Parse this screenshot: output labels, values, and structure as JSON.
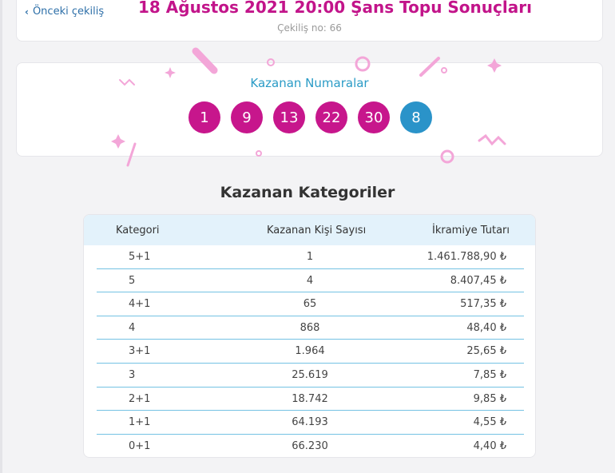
{
  "header": {
    "back_label": "Önceki çekiliş",
    "title": "18 Ağustos 2021 20:00 Şans Topu Sonuçları",
    "draw_no": "Çekiliş no: 66"
  },
  "winning": {
    "title": "Kazanan Numaralar",
    "main_numbers": [
      "1",
      "9",
      "13",
      "22",
      "30"
    ],
    "bonus_number": "8"
  },
  "categories": {
    "title": "Kazanan Kategoriler",
    "columns": [
      "Kategori",
      "Kazanan Kişi Sayısı",
      "İkramiye Tutarı"
    ],
    "rows": [
      {
        "cat": "5+1",
        "count": "1",
        "prize": "1.461.788,90 ₺"
      },
      {
        "cat": "5",
        "count": "4",
        "prize": "8.407,45 ₺"
      },
      {
        "cat": "4+1",
        "count": "65",
        "prize": "517,35 ₺"
      },
      {
        "cat": "4",
        "count": "868",
        "prize": "48,40 ₺"
      },
      {
        "cat": "3+1",
        "count": "1.964",
        "prize": "25,65 ₺"
      },
      {
        "cat": "3",
        "count": "25.619",
        "prize": "7,85 ₺"
      },
      {
        "cat": "2+1",
        "count": "18.742",
        "prize": "9,85 ₺"
      },
      {
        "cat": "1+1",
        "count": "64.193",
        "prize": "4,55 ₺"
      },
      {
        "cat": "0+1",
        "count": "66.230",
        "prize": "4,40 ₺"
      }
    ]
  },
  "colors": {
    "title": "#c2148a",
    "main_ball": "#c7168c",
    "bonus_ball": "#2a93c9",
    "accent_blue": "#2a9bc6",
    "table_header_bg": "#e3f2fb",
    "decoration_pink": "#f3a6d8"
  }
}
